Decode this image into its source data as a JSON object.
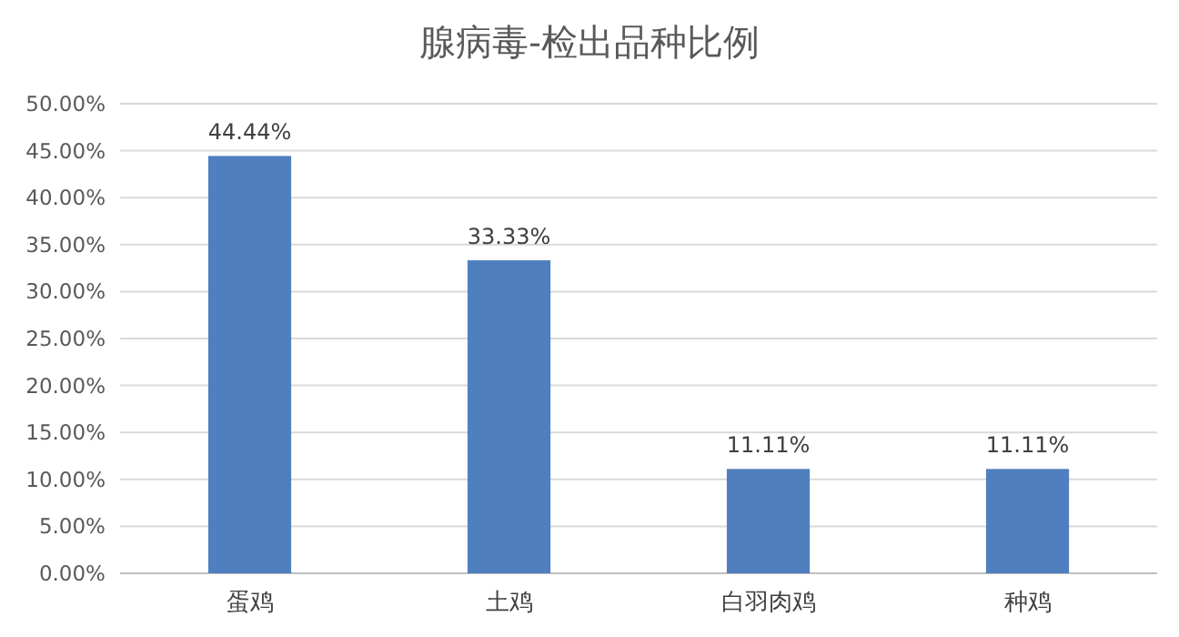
{
  "chart_data": {
    "type": "bar",
    "title": "腺病毒-检出品种比例",
    "categories": [
      "蛋鸡",
      "土鸡",
      "白羽肉鸡",
      "种鸡"
    ],
    "values": [
      44.44,
      33.33,
      11.11,
      11.11
    ],
    "value_labels": [
      "44.44%",
      "33.33%",
      "11.11%",
      "11.11%"
    ],
    "color": "#4f7fbf",
    "ylim": [
      0,
      50
    ],
    "yticks": [
      {
        "value": 0,
        "label": "0.00%"
      },
      {
        "value": 5,
        "label": "5.00%"
      },
      {
        "value": 10,
        "label": "10.00%"
      },
      {
        "value": 15,
        "label": "15.00%"
      },
      {
        "value": 20,
        "label": "20.00%"
      },
      {
        "value": 25,
        "label": "25.00%"
      },
      {
        "value": 30,
        "label": "30.00%"
      },
      {
        "value": 35,
        "label": "35.00%"
      },
      {
        "value": 40,
        "label": "40.00%"
      },
      {
        "value": 45,
        "label": "45.00%"
      },
      {
        "value": 50,
        "label": "50.00%"
      }
    ],
    "grid": "y"
  }
}
